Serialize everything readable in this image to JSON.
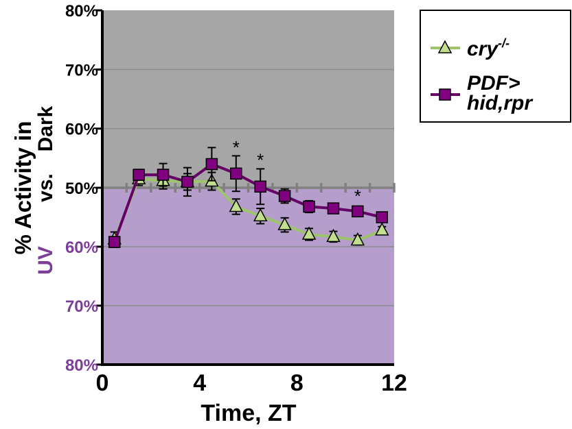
{
  "chart_data": {
    "type": "line",
    "xlabel": "Time, ZT",
    "x_ticks": [
      "0",
      "4",
      "8",
      "12"
    ],
    "xlim": [
      0,
      12
    ],
    "ylabel": {
      "line1": "% Activity in",
      "line2_top": "Dark",
      "line2_mid": "vs.",
      "line2_bottom": "UV"
    },
    "ylim": [
      80,
      -80
    ],
    "y_ticks": [
      {
        "value": 80,
        "label": "80%",
        "region": "dark"
      },
      {
        "value": 70,
        "label": "70%",
        "region": "dark"
      },
      {
        "value": 60,
        "label": "60%",
        "region": "dark"
      },
      {
        "value": 50,
        "label": "50%",
        "region": "divider"
      },
      {
        "value": -60,
        "label": "60%",
        "region": "uv"
      },
      {
        "value": -70,
        "label": "70%",
        "region": "uv"
      },
      {
        "value": -80,
        "label": "80%",
        "region": "uv"
      }
    ],
    "regions": {
      "dark_color": "#A6A6A6",
      "uv_color": "#B59ECB",
      "uv_label_color": "#7B3F98",
      "divider_color": "#808080"
    },
    "grid": true,
    "legend_position": "outside-right",
    "series": [
      {
        "name": "cry-/-",
        "name_main": "cry",
        "name_sup": "-/-",
        "marker": "triangle",
        "color": "#9DC46B",
        "fill": "#C2DE8F",
        "x": [
          0.5,
          1.5,
          2.5,
          3.5,
          4.5,
          5.5,
          6.5,
          7.5,
          8.5,
          9.5,
          10.5,
          11.5
        ],
        "y": [
          -58.7,
          -48.5,
          -48.8,
          -49.0,
          -48.9,
          -53.2,
          -54.8,
          -56.3,
          -57.9,
          -58.3,
          -58.9,
          -57.2
        ],
        "err": [
          1.2,
          1.1,
          1.4,
          1.4,
          1.5,
          1.3,
          1.3,
          1.2,
          1.0,
          0.9,
          0.8,
          0.6
        ]
      },
      {
        "name": "PDF> hid,rpr",
        "name_line1": "PDF>",
        "name_line2": "hid,rpr",
        "marker": "square",
        "color": "#660066",
        "fill": "#800080",
        "x": [
          0.5,
          1.5,
          2.5,
          3.5,
          4.5,
          5.5,
          6.5,
          7.5,
          8.5,
          9.5,
          10.5,
          11.5
        ],
        "y": [
          -59.2,
          -47.8,
          52.2,
          51.0,
          54.0,
          52.4,
          50.2,
          -51.4,
          -53.2,
          -53.5,
          -54.0,
          -55.0
        ],
        "err": [
          0.9,
          0.9,
          1.9,
          2.4,
          2.8,
          3.0,
          3.0,
          1.2,
          1.0,
          0.7,
          0.6,
          0.4
        ]
      }
    ],
    "annotations": [
      {
        "text": "*",
        "x": 5.5,
        "y": 57.4
      },
      {
        "text": "*",
        "x": 6.5,
        "y": 55.3
      },
      {
        "text": "*",
        "x": 10.5,
        "y": -50.8
      }
    ]
  }
}
